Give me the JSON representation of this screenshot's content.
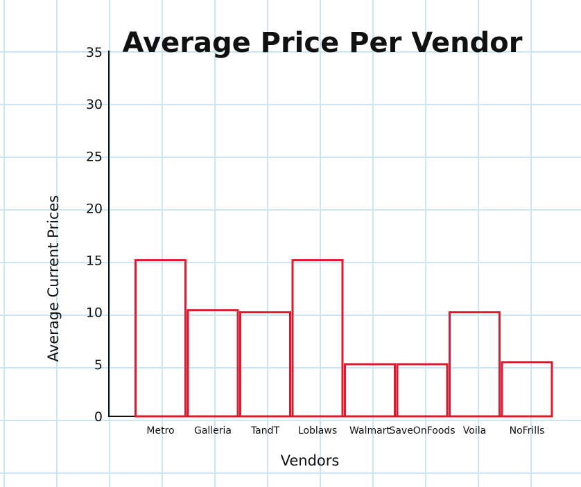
{
  "chart_data": {
    "type": "bar",
    "title": "Average Price Per Vendor",
    "xlabel": "Vendors",
    "ylabel": "Average Current Prices",
    "categories": [
      "Metro",
      "Galleria",
      "TandT",
      "Loblaws",
      "Walmart",
      "SaveOnFoods",
      "Voila",
      "NoFrills"
    ],
    "values": [
      15,
      10.2,
      10,
      15,
      5,
      5,
      10,
      5.2
    ],
    "ylim": [
      0,
      35
    ],
    "yticks": [
      0,
      5,
      10,
      15,
      20,
      25,
      30,
      35
    ],
    "bar_color": "#e0192e",
    "grid": true,
    "grid_color": "#c9e6f3"
  }
}
